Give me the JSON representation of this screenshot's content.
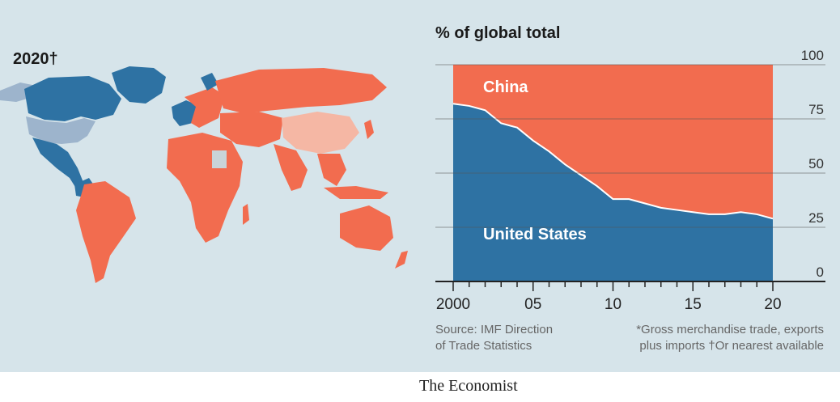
{
  "map": {
    "year_label": "2020†",
    "colors": {
      "china": "#f26c4f",
      "united_states": "#2e72a3",
      "us_home": "#9db4cc",
      "china_home": "#f5b7a4",
      "no_data": "#c9d4d9",
      "ocean": "#d6e4ea"
    }
  },
  "chart_data": {
    "type": "area",
    "title": "% of global total",
    "x": [
      2000,
      2001,
      2002,
      2003,
      2004,
      2005,
      2006,
      2007,
      2008,
      2009,
      2010,
      2011,
      2012,
      2013,
      2014,
      2015,
      2016,
      2017,
      2018,
      2019,
      2020
    ],
    "x_tick_labels": [
      "2000",
      "05",
      "10",
      "15",
      "20"
    ],
    "x_tick_values": [
      2000,
      2005,
      2010,
      2015,
      2020
    ],
    "y_ticks": [
      0,
      25,
      50,
      75,
      100
    ],
    "ylim": [
      0,
      100
    ],
    "series": [
      {
        "name": "United States",
        "color": "#2e72a3",
        "values": [
          82,
          81,
          79,
          73,
          71,
          65,
          60,
          54,
          49,
          44,
          38,
          38,
          36,
          34,
          33,
          32,
          31,
          31,
          32,
          31,
          29
        ]
      },
      {
        "name": "China",
        "color": "#f26c4f",
        "values": [
          18,
          19,
          21,
          27,
          29,
          35,
          40,
          46,
          51,
          56,
          62,
          62,
          64,
          66,
          67,
          68,
          69,
          69,
          68,
          69,
          71
        ]
      }
    ],
    "stacked": true
  },
  "source": {
    "line1": "Source: IMF Direction",
    "line2": "of Trade Statistics"
  },
  "footnote": {
    "line1": "*Gross merchandise trade, exports",
    "line2": "plus imports  †Or nearest available"
  },
  "brand": "The Economist"
}
